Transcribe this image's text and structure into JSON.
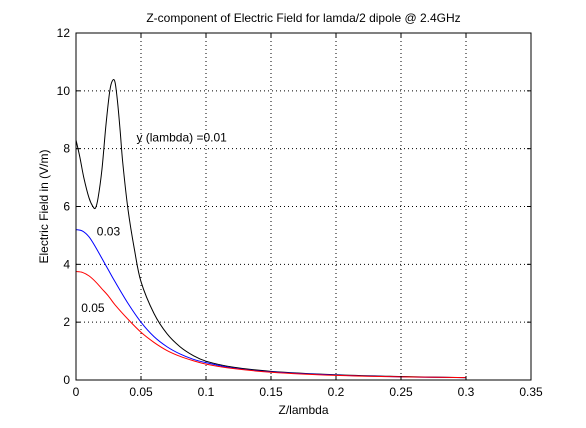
{
  "chart_data": {
    "type": "line",
    "title": "Z-component of Electric Field for lamda/2 dipole @ 2.4GHz",
    "xlabel": "Z/lambda",
    "ylabel": "Electric Field in (V/m)",
    "xlim": [
      0,
      0.35
    ],
    "ylim": [
      0,
      12
    ],
    "xticks": [
      "0",
      "0.05",
      "0.1",
      "0.15",
      "0.2",
      "0.25",
      "0.3",
      "0.35"
    ],
    "yticks": [
      "0",
      "2",
      "4",
      "6",
      "8",
      "10",
      "12"
    ],
    "grid": true,
    "series": [
      {
        "name": "y (lambda) =0.01",
        "color": "#000000",
        "x": [
          0,
          0.003,
          0.006,
          0.01,
          0.013,
          0.015,
          0.017,
          0.02,
          0.023,
          0.026,
          0.028,
          0.03,
          0.032,
          0.034,
          0.036,
          0.04,
          0.045,
          0.05,
          0.06,
          0.07,
          0.08,
          0.09,
          0.1,
          0.12,
          0.15,
          0.2,
          0.25,
          0.3
        ],
        "y": [
          8.3,
          7.7,
          7.0,
          6.3,
          6.0,
          5.95,
          6.3,
          7.3,
          8.8,
          10.0,
          10.35,
          10.3,
          9.6,
          8.6,
          7.5,
          5.9,
          4.5,
          3.4,
          2.3,
          1.6,
          1.15,
          0.85,
          0.65,
          0.45,
          0.3,
          0.18,
          0.12,
          0.08
        ]
      },
      {
        "name": "0.03",
        "color": "#0000ff",
        "x": [
          0,
          0.005,
          0.01,
          0.015,
          0.02,
          0.025,
          0.03,
          0.04,
          0.05,
          0.06,
          0.07,
          0.08,
          0.09,
          0.1,
          0.12,
          0.15,
          0.2,
          0.25,
          0.3
        ],
        "y": [
          5.2,
          5.15,
          4.95,
          4.6,
          4.2,
          3.8,
          3.4,
          2.65,
          2.0,
          1.5,
          1.15,
          0.9,
          0.72,
          0.6,
          0.42,
          0.28,
          0.17,
          0.11,
          0.08
        ]
      },
      {
        "name": "0.05",
        "color": "#ff0000",
        "x": [
          0,
          0.005,
          0.01,
          0.015,
          0.02,
          0.025,
          0.03,
          0.04,
          0.05,
          0.06,
          0.07,
          0.08,
          0.09,
          0.1,
          0.12,
          0.15,
          0.2,
          0.25,
          0.3
        ],
        "y": [
          3.75,
          3.72,
          3.6,
          3.4,
          3.15,
          2.9,
          2.6,
          2.1,
          1.65,
          1.3,
          1.02,
          0.82,
          0.67,
          0.55,
          0.4,
          0.27,
          0.16,
          0.11,
          0.08
        ]
      }
    ],
    "annotations": [
      {
        "text": "y (lambda) =0.01",
        "x": 0.0465,
        "y": 8.25
      },
      {
        "text": "0.03",
        "x": 0.016,
        "y": 5.0
      },
      {
        "text": "0.05",
        "x": 0.004,
        "y": 2.35
      }
    ]
  }
}
